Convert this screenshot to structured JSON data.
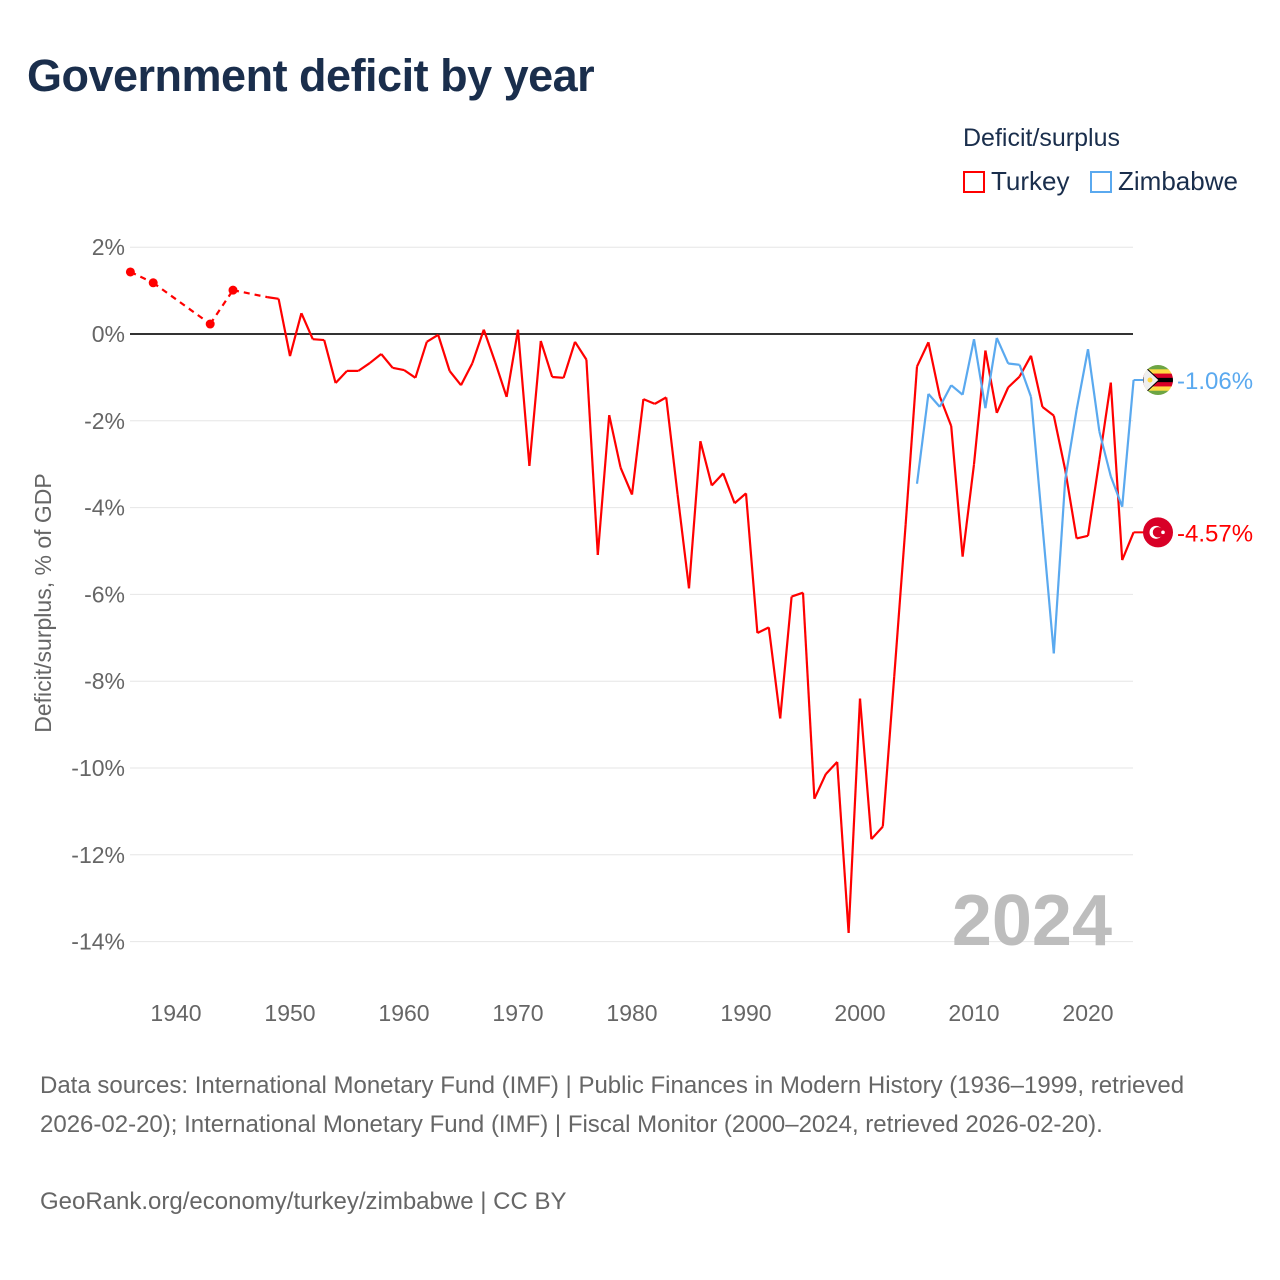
{
  "title": "Government deficit by year",
  "legend": {
    "title": "Deficit/surplus",
    "items": [
      {
        "name": "Turkey",
        "color": "#ff0000"
      },
      {
        "name": "Zimbabwe",
        "color": "#5aa9ef"
      }
    ]
  },
  "chart_data": {
    "type": "line",
    "title": "Government deficit by year",
    "ylabel": "Deficit/surplus, % of GDP",
    "xlabel": "",
    "ylim": [
      -15,
      2
    ],
    "xlim": [
      1936,
      2024
    ],
    "y_ticks": [
      2,
      0,
      -2,
      -4,
      -6,
      -8,
      -10,
      -12,
      -14
    ],
    "y_tick_labels": [
      "2%",
      "0%",
      "-2%",
      "-4%",
      "-6%",
      "-8%",
      "-10%",
      "-12%",
      "-14%"
    ],
    "x_ticks": [
      1940,
      1950,
      1960,
      1970,
      1980,
      1990,
      2000,
      2010,
      2020
    ],
    "x_tick_labels": [
      "1940",
      "1950",
      "1960",
      "1970",
      "1980",
      "1990",
      "2000",
      "2010",
      "2020"
    ],
    "grid": true,
    "year_watermark": "2024",
    "series": [
      {
        "name": "Turkey",
        "color": "#ff0000",
        "end_label": "-4.57%",
        "points": [
          [
            1936,
            1.43
          ],
          [
            1938,
            1.18
          ],
          [
            1943,
            0.23
          ],
          [
            1945,
            1.01
          ],
          [
            1948,
            0.85
          ],
          [
            1949,
            0.81
          ],
          [
            1950,
            -0.51
          ],
          [
            1951,
            0.48
          ],
          [
            1952,
            -0.12
          ],
          [
            1953,
            -0.14
          ],
          [
            1954,
            -1.13
          ],
          [
            1955,
            -0.85
          ],
          [
            1956,
            -0.85
          ],
          [
            1957,
            -0.67
          ],
          [
            1958,
            -0.46
          ],
          [
            1959,
            -0.78
          ],
          [
            1960,
            -0.83
          ],
          [
            1961,
            -1.01
          ],
          [
            1962,
            -0.18
          ],
          [
            1963,
            -0.02
          ],
          [
            1964,
            -0.85
          ],
          [
            1965,
            -1.18
          ],
          [
            1966,
            -0.67
          ],
          [
            1967,
            0.1
          ],
          [
            1968,
            -0.65
          ],
          [
            1969,
            -1.45
          ],
          [
            1970,
            0.1
          ],
          [
            1971,
            -3.04
          ],
          [
            1972,
            -0.16
          ],
          [
            1973,
            -0.99
          ],
          [
            1974,
            -1.01
          ],
          [
            1975,
            -0.18
          ],
          [
            1976,
            -0.59
          ],
          [
            1977,
            -5.09
          ],
          [
            1978,
            -1.87
          ],
          [
            1979,
            -3.08
          ],
          [
            1980,
            -3.7
          ],
          [
            1981,
            -1.5
          ],
          [
            1982,
            -1.61
          ],
          [
            1983,
            -1.46
          ],
          [
            1984,
            -3.7
          ],
          [
            1985,
            -5.86
          ],
          [
            1986,
            -2.47
          ],
          [
            1987,
            -3.49
          ],
          [
            1988,
            -3.21
          ],
          [
            1989,
            -3.9
          ],
          [
            1990,
            -3.67
          ],
          [
            1991,
            -6.89
          ],
          [
            1992,
            -6.76
          ],
          [
            1993,
            -8.86
          ],
          [
            1994,
            -6.05
          ],
          [
            1995,
            -5.96
          ],
          [
            1996,
            -10.71
          ],
          [
            1997,
            -10.14
          ],
          [
            1998,
            -9.86
          ],
          [
            1999,
            -13.8
          ],
          [
            2000,
            -8.4
          ],
          [
            2001,
            -11.64
          ],
          [
            2002,
            -11.35
          ],
          [
            2003,
            -7.9
          ],
          [
            2004,
            -4.4
          ],
          [
            2005,
            -0.75
          ],
          [
            2006,
            -0.19
          ],
          [
            2007,
            -1.44
          ],
          [
            2008,
            -2.12
          ],
          [
            2009,
            -5.13
          ],
          [
            2010,
            -3.0
          ],
          [
            2011,
            -0.38
          ],
          [
            2012,
            -1.82
          ],
          [
            2013,
            -1.23
          ],
          [
            2014,
            -0.98
          ],
          [
            2015,
            -0.5
          ],
          [
            2016,
            -1.68
          ],
          [
            2017,
            -1.88
          ],
          [
            2018,
            -3.13
          ],
          [
            2019,
            -4.71
          ],
          [
            2020,
            -4.65
          ],
          [
            2021,
            -2.9
          ],
          [
            2022,
            -1.12
          ],
          [
            2023,
            -5.21
          ],
          [
            2024,
            -4.57
          ]
        ]
      },
      {
        "name": "Zimbabwe",
        "color": "#5aa9ef",
        "end_label": "-1.06%",
        "points": [
          [
            2005,
            -3.45
          ],
          [
            2006,
            -1.38
          ],
          [
            2007,
            -1.68
          ],
          [
            2008,
            -1.18
          ],
          [
            2009,
            -1.4
          ],
          [
            2010,
            -0.12
          ],
          [
            2011,
            -1.71
          ],
          [
            2012,
            -0.09
          ],
          [
            2013,
            -0.68
          ],
          [
            2014,
            -0.71
          ],
          [
            2015,
            -1.45
          ],
          [
            2016,
            -4.4
          ],
          [
            2017,
            -7.36
          ],
          [
            2018,
            -3.36
          ],
          [
            2019,
            -1.75
          ],
          [
            2020,
            -0.35
          ],
          [
            2021,
            -2.25
          ],
          [
            2022,
            -3.28
          ],
          [
            2023,
            -3.98
          ],
          [
            2024,
            -1.06
          ]
        ]
      }
    ]
  },
  "footer": {
    "sources": "Data sources: International Monetary Fund (IMF) | Public Finances in Modern History (1936–1999, retrieved 2026-02-20); International Monetary Fund (IMF) | Fiscal Monitor (2000–2024, retrieved 2026-02-20).",
    "credit": "GeoRank.org/economy/turkey/zimbabwe | CC BY"
  }
}
